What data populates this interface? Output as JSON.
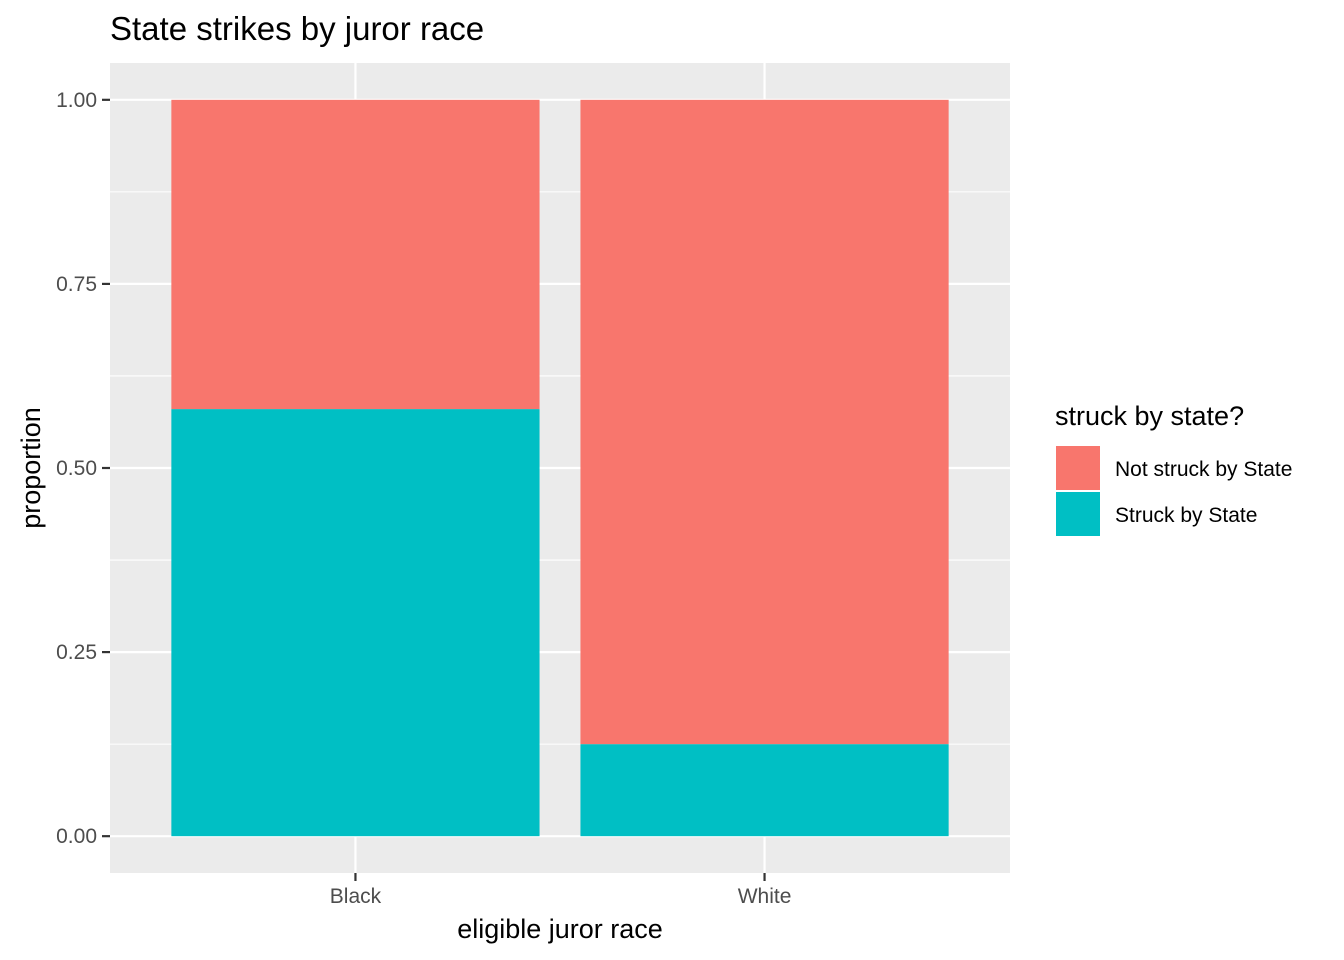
{
  "chart_data": {
    "type": "bar",
    "stacked": true,
    "title": "State strikes by juror race",
    "xlabel": "eligible juror race",
    "ylabel": "proportion",
    "categories": [
      "Black",
      "White"
    ],
    "series": [
      {
        "name": "Struck by State",
        "color": "#00BFC4",
        "values": [
          0.58,
          0.125
        ]
      },
      {
        "name": "Not struck by State",
        "color": "#F8766D",
        "values": [
          0.42,
          0.875
        ]
      }
    ],
    "ylim": [
      -0.05,
      1.05
    ],
    "yticks": [
      0.0,
      0.25,
      0.5,
      0.75,
      1.0
    ],
    "ytick_labels": [
      "0.00",
      "0.25",
      "0.50",
      "0.75",
      "1.00"
    ],
    "grid": true,
    "legend": {
      "title": "struck by state?",
      "position": "right",
      "entries": [
        {
          "label": "Not struck by State",
          "color": "#F8766D"
        },
        {
          "label": "Struck by State",
          "color": "#00BFC4"
        }
      ]
    }
  }
}
